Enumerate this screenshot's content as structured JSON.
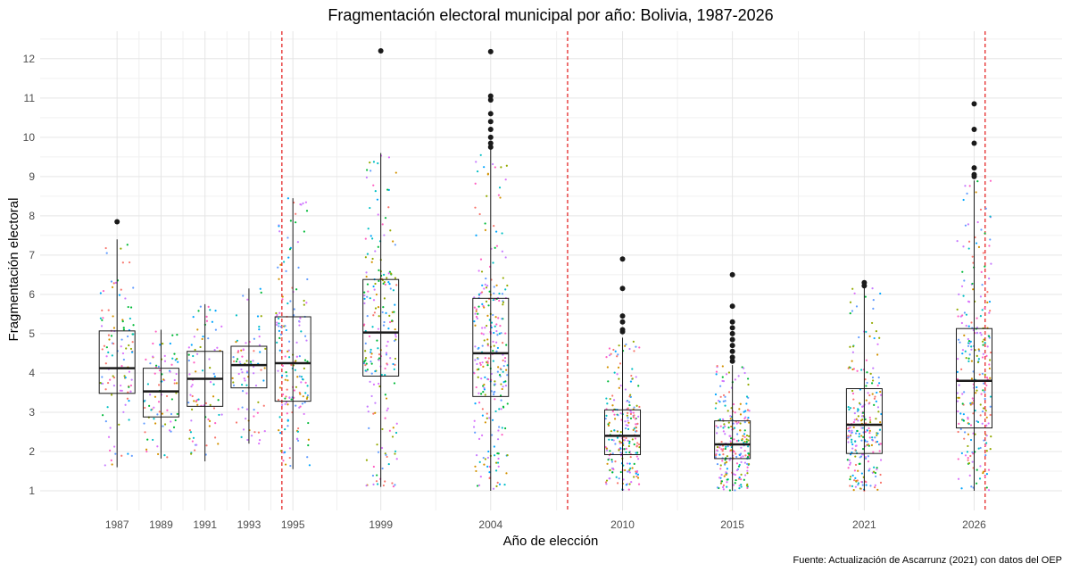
{
  "chart_data": {
    "type": "box",
    "title": "Fragmentación electoral municipal por año: Bolivia, 1987-2026",
    "xlabel": "Año de elección",
    "ylabel": "Fragmentación electoral",
    "caption": "Fuente: Actualización de Ascarrunz (2021) con datos del OEP",
    "ylim": [
      0.5,
      12.7
    ],
    "xlim": [
      1983.5,
      2030
    ],
    "y_ticks": [
      1,
      2,
      3,
      4,
      5,
      6,
      7,
      8,
      9,
      10,
      11,
      12
    ],
    "x_ticks": [
      1987,
      1989,
      1991,
      1993,
      1995,
      1999,
      2004,
      2010,
      2015,
      2021,
      2026
    ],
    "vlines": [
      1994.5,
      2007.5,
      2026.5
    ],
    "vline_color": "#e00000",
    "jitter_colors": [
      "#f8766d",
      "#00ba38",
      "#619cff",
      "#c77cff",
      "#00bfc4",
      "#d39200",
      "#93aa00",
      "#db72fb",
      "#00a5ff",
      "#ff61c3"
    ],
    "boxes": [
      {
        "year": 1987,
        "min": 1.6,
        "q1": 3.48,
        "median": 4.12,
        "q3": 5.07,
        "max": 7.4,
        "outliers": [
          7.85
        ],
        "n": 110
      },
      {
        "year": 1989,
        "min": 1.82,
        "q1": 2.88,
        "median": 3.53,
        "q3": 4.12,
        "max": 5.1,
        "outliers": [],
        "n": 80
      },
      {
        "year": 1991,
        "min": 1.75,
        "q1": 3.15,
        "median": 3.85,
        "q3": 4.55,
        "max": 5.75,
        "outliers": [],
        "n": 80
      },
      {
        "year": 1993,
        "min": 2.2,
        "q1": 3.62,
        "median": 4.2,
        "q3": 4.68,
        "max": 6.15,
        "outliers": [],
        "n": 80
      },
      {
        "year": 1995,
        "min": 1.55,
        "q1": 3.28,
        "median": 4.25,
        "q3": 5.43,
        "max": 8.45,
        "outliers": [],
        "n": 160
      },
      {
        "year": 1999,
        "min": 1.1,
        "q1": 3.92,
        "median": 5.03,
        "q3": 6.38,
        "max": 9.6,
        "outliers": [
          12.2
        ],
        "n": 200
      },
      {
        "year": 2004,
        "min": 1.0,
        "q1": 3.4,
        "median": 4.5,
        "q3": 5.9,
        "max": 9.7,
        "outliers": [
          9.75,
          9.85,
          10.0,
          10.2,
          10.4,
          10.6,
          10.95,
          11.05,
          12.18
        ],
        "n": 260
      },
      {
        "year": 2010,
        "min": 1.0,
        "q1": 1.92,
        "median": 2.4,
        "q3": 3.06,
        "max": 4.9,
        "outliers": [
          5.05,
          5.1,
          5.3,
          5.45,
          6.15,
          6.9
        ],
        "n": 220
      },
      {
        "year": 2015,
        "min": 1.0,
        "q1": 1.82,
        "median": 2.18,
        "q3": 2.78,
        "max": 4.2,
        "outliers": [
          4.3,
          4.4,
          4.55,
          4.7,
          4.85,
          5.0,
          5.15,
          5.3,
          5.7,
          6.5
        ],
        "n": 240
      },
      {
        "year": 2021,
        "min": 1.0,
        "q1": 1.95,
        "median": 2.68,
        "q3": 3.6,
        "max": 6.2,
        "outliers": [
          6.22,
          6.3
        ],
        "n": 240
      },
      {
        "year": 2026,
        "min": 1.0,
        "q1": 2.6,
        "median": 3.8,
        "q3": 5.13,
        "max": 8.9,
        "outliers": [
          9.0,
          9.05,
          9.22,
          9.85,
          10.2,
          10.85
        ],
        "n": 240
      }
    ]
  }
}
